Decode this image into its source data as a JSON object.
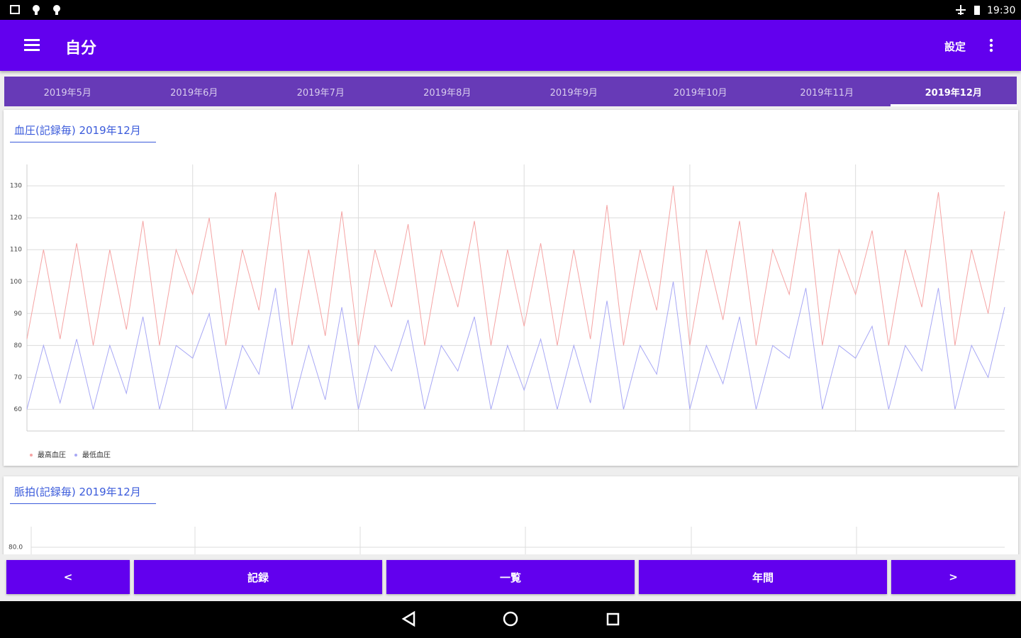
{
  "status_bar": {
    "time": "19:30"
  },
  "app_bar": {
    "title": "自分",
    "action": "設定"
  },
  "tabs": [
    "2019年5月",
    "2019年6月",
    "2019年7月",
    "2019年8月",
    "2019年9月",
    "2019年10月",
    "2019年11月",
    "2019年12月"
  ],
  "chart_data": {
    "type": "line",
    "title": "血圧(記録毎) 2019年12月",
    "categories": [
      null,
      null,
      null,
      null,
      null,
      null,
      null,
      null,
      null,
      null,
      null,
      null,
      null,
      null,
      null,
      null,
      null,
      null,
      null,
      null,
      null,
      null,
      null,
      null,
      null,
      null,
      null,
      null,
      null,
      null,
      null,
      null,
      null,
      null,
      null,
      null,
      null,
      null,
      null,
      null,
      null,
      null,
      null,
      null,
      null,
      null,
      null,
      null,
      null,
      null,
      null,
      null,
      null,
      null,
      null,
      null,
      null,
      null,
      null,
      null
    ],
    "series": [
      {
        "name": "最高血圧",
        "color": "#f5a3a3",
        "values": [
          82,
          110,
          82,
          112,
          80,
          110,
          85,
          119,
          80,
          110,
          96,
          120,
          80,
          110,
          91,
          128,
          80,
          110,
          83,
          122,
          80,
          110,
          92,
          118,
          80,
          110,
          92,
          119,
          80,
          110,
          86,
          112,
          80,
          110,
          82,
          124,
          80,
          110,
          91,
          130,
          80,
          110,
          88,
          119,
          80,
          110,
          96,
          128,
          80,
          110,
          96,
          116,
          80,
          110,
          92,
          128,
          80,
          110,
          90,
          122
        ]
      },
      {
        "name": "最低血圧",
        "color": "#a8a8f5",
        "values": [
          60,
          80,
          62,
          82,
          60,
          80,
          65,
          89,
          60,
          80,
          76,
          90,
          60,
          80,
          71,
          98,
          60,
          80,
          63,
          92,
          60,
          80,
          72,
          88,
          60,
          80,
          72,
          89,
          60,
          80,
          66,
          82,
          60,
          80,
          62,
          94,
          60,
          80,
          71,
          100,
          60,
          80,
          68,
          89,
          60,
          80,
          76,
          98,
          60,
          80,
          76,
          86,
          60,
          80,
          72,
          98,
          60,
          80,
          70,
          92
        ]
      }
    ],
    "ylim": [
      53.2,
      136.7
    ],
    "yticks": [
      60,
      70,
      80,
      90,
      100,
      110,
      120,
      130
    ],
    "grid": true
  },
  "pulse_card": {
    "title": "脈拍(記録毎) 2019年12月",
    "tick_label": "80.0"
  },
  "bottom_bar": [
    "<",
    "記録",
    "一覧",
    "年間",
    ">"
  ]
}
